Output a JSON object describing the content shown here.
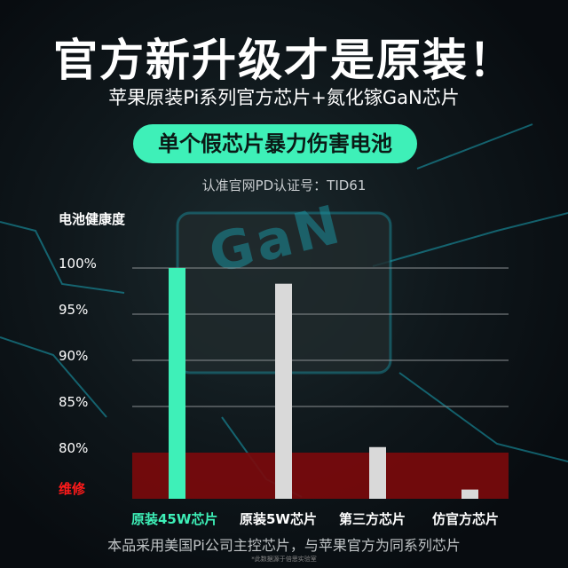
{
  "header": {
    "title": "官方新升级才是原装！",
    "subtitle": "苹果原装Pi系列官方芯片+氮化镓GaN芯片",
    "badge": "单个假芯片暴力伤害电池",
    "certification": "认准官网PD认证号：TID61"
  },
  "background_logo_text": "GaN",
  "footer": {
    "note": "本品采用美国Pi公司主控芯片，与苹果官方为同系列芯片",
    "source": "*此数据源于倍思实验室"
  },
  "colors": {
    "highlight": "#3ef0b8",
    "bar": "#d9d9d9",
    "repair_zone": "#7a0a0c",
    "repair_label": "#ff1a1a"
  },
  "chart_data": {
    "type": "bar",
    "ylabel": "电池健康度",
    "categories": [
      "原装45W芯片",
      "原装5W芯片",
      "第三方芯片",
      "仿官方芯片"
    ],
    "values": [
      100,
      98.3,
      80.6,
      76
    ],
    "highlight_index": 0,
    "ylim": [
      75,
      100
    ],
    "yticks": [
      {
        "value": 100,
        "label": "100%"
      },
      {
        "value": 95,
        "label": "95%"
      },
      {
        "value": 90,
        "label": "90%"
      },
      {
        "value": 85,
        "label": "85%"
      },
      {
        "value": 80,
        "label": "80%"
      },
      {
        "value": 75,
        "label": "维修"
      }
    ],
    "repair_zone": {
      "from": 75,
      "to": 80,
      "label": "维修"
    },
    "grid": true
  }
}
